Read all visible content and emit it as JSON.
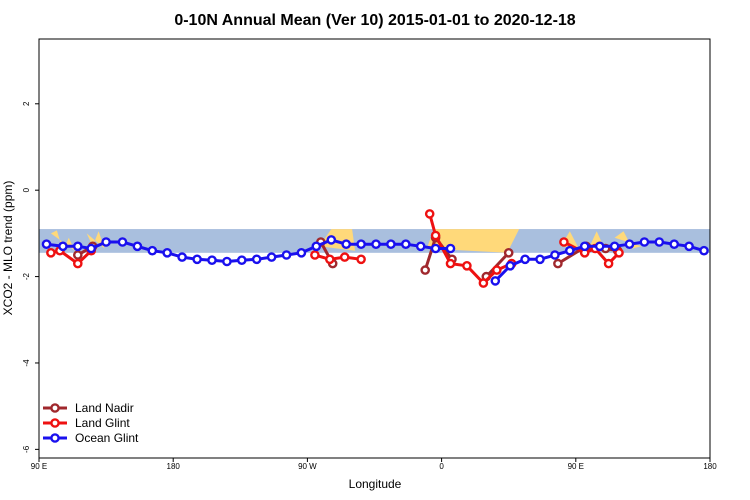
{
  "chart_data": {
    "type": "line",
    "title": "0-10N Annual Mean (Ver 10)   2015-01-01 to 2020-12-18",
    "xlabel": "Longitude",
    "ylabel": "XCO2 - MLO trend (ppm)",
    "xlim": [
      0,
      450
    ],
    "ylim": [
      -6.2,
      3.5
    ],
    "x_ticks": [
      {
        "value": 0,
        "label": "90 E"
      },
      {
        "value": 90,
        "label": "180"
      },
      {
        "value": 180,
        "label": "90 W"
      },
      {
        "value": 270,
        "label": "0"
      },
      {
        "value": 360,
        "label": "90 E"
      },
      {
        "value": 450,
        "label": "180"
      }
    ],
    "y_ticks": [
      {
        "value": 2,
        "label": "2"
      },
      {
        "value": 0,
        "label": "0"
      },
      {
        "value": -2,
        "label": "-2"
      },
      {
        "value": -4,
        "label": "-4"
      },
      {
        "value": -6,
        "label": "-6"
      }
    ],
    "band": {
      "ymin": -1.45,
      "ymax": -0.9,
      "color": "#a9bfde"
    },
    "land_color": "#ffd97a",
    "land_regions": [
      [
        [
          8,
          -1.0
        ],
        [
          12,
          -0.93
        ],
        [
          16,
          -1.4
        ],
        [
          20,
          -1.1
        ],
        [
          24,
          -1.4
        ]
      ],
      [
        [
          32,
          -1.0
        ],
        [
          36,
          -1.3
        ],
        [
          40,
          -0.95
        ],
        [
          44,
          -1.35
        ]
      ],
      [
        [
          188,
          -1.3
        ],
        [
          196,
          -0.9
        ],
        [
          210,
          -0.9
        ],
        [
          212,
          -1.4
        ]
      ],
      [
        [
          260,
          -1.35
        ],
        [
          265,
          -0.9
        ],
        [
          322,
          -0.9
        ],
        [
          314,
          -1.45
        ]
      ],
      [
        [
          350,
          -1.3
        ],
        [
          356,
          -0.95
        ],
        [
          362,
          -1.35
        ]
      ],
      [
        [
          368,
          -1.4
        ],
        [
          374,
          -0.95
        ],
        [
          380,
          -1.4
        ]
      ],
      [
        [
          386,
          -1.1
        ],
        [
          392,
          -0.95
        ],
        [
          398,
          -1.35
        ],
        [
          404,
          -1.3
        ]
      ]
    ],
    "series": [
      {
        "name": "Land Nadir",
        "color": "#a0282d",
        "segments": [
          [
            [
              26,
              -1.5
            ],
            [
              36,
              -1.3
            ]
          ],
          [
            [
              189,
              -1.2
            ],
            [
              197,
              -1.7
            ]
          ],
          [
            [
              259,
              -1.85
            ],
            [
              266,
              -1.1
            ],
            [
              277,
              -1.6
            ]
          ],
          [
            [
              300,
              -2.0
            ],
            [
              315,
              -1.45
            ]
          ],
          [
            [
              348,
              -1.7
            ],
            [
              367,
              -1.3
            ],
            [
              380,
              -1.35
            ],
            [
              388,
              -1.4
            ]
          ]
        ]
      },
      {
        "name": "Land Glint",
        "color": "#ee1111",
        "segments": [
          [
            [
              8,
              -1.45
            ],
            [
              14,
              -1.4
            ],
            [
              26,
              -1.7
            ],
            [
              35,
              -1.4
            ]
          ],
          [
            [
              185,
              -1.5
            ],
            [
              195,
              -1.6
            ],
            [
              205,
              -1.55
            ],
            [
              216,
              -1.6
            ]
          ],
          [
            [
              262,
              -0.55
            ],
            [
              266,
              -1.05
            ],
            [
              276,
              -1.7
            ],
            [
              287,
              -1.75
            ],
            [
              298,
              -2.15
            ],
            [
              307,
              -1.85
            ],
            [
              317,
              -1.7
            ]
          ],
          [
            [
              352,
              -1.2
            ],
            [
              366,
              -1.45
            ],
            [
              373,
              -1.35
            ],
            [
              382,
              -1.7
            ],
            [
              389,
              -1.45
            ]
          ]
        ]
      },
      {
        "name": "Ocean Glint",
        "color": "#1a10ee",
        "segments": [
          [
            [
              5,
              -1.25
            ],
            [
              16,
              -1.3
            ],
            [
              26,
              -1.3
            ],
            [
              35,
              -1.35
            ],
            [
              45,
              -1.2
            ],
            [
              56,
              -1.2
            ],
            [
              66,
              -1.3
            ],
            [
              76,
              -1.4
            ],
            [
              86,
              -1.45
            ],
            [
              96,
              -1.55
            ],
            [
              106,
              -1.6
            ],
            [
              116,
              -1.62
            ],
            [
              126,
              -1.65
            ],
            [
              136,
              -1.62
            ],
            [
              146,
              -1.6
            ],
            [
              156,
              -1.55
            ],
            [
              166,
              -1.5
            ],
            [
              176,
              -1.45
            ],
            [
              186,
              -1.3
            ],
            [
              196,
              -1.15
            ],
            [
              206,
              -1.25
            ],
            [
              216,
              -1.25
            ],
            [
              226,
              -1.25
            ],
            [
              236,
              -1.25
            ],
            [
              246,
              -1.25
            ],
            [
              256,
              -1.3
            ],
            [
              266,
              -1.35
            ],
            [
              276,
              -1.35
            ]
          ],
          [
            [
              306,
              -2.1
            ],
            [
              316,
              -1.75
            ],
            [
              326,
              -1.6
            ],
            [
              336,
              -1.6
            ],
            [
              346,
              -1.5
            ],
            [
              356,
              -1.4
            ],
            [
              366,
              -1.3
            ],
            [
              376,
              -1.3
            ],
            [
              386,
              -1.3
            ],
            [
              396,
              -1.25
            ],
            [
              406,
              -1.2
            ],
            [
              416,
              -1.2
            ],
            [
              426,
              -1.25
            ],
            [
              436,
              -1.3
            ],
            [
              446,
              -1.4
            ]
          ]
        ]
      }
    ],
    "legend_position": "bottom-left"
  }
}
